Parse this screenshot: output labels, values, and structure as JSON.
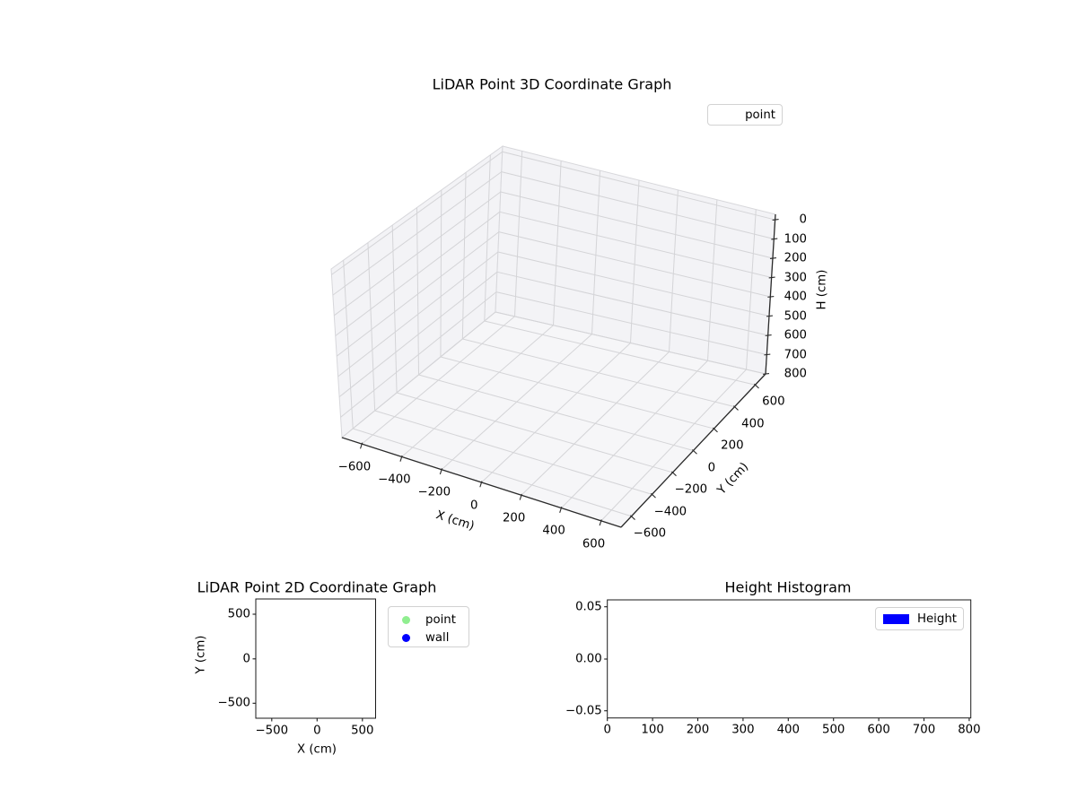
{
  "figure": {
    "background": "#ffffff"
  },
  "chart_data": [
    {
      "id": "lidar-3d",
      "type": "scatter3d",
      "title": "LiDAR Point 3D Coordinate Graph",
      "xlabel": "X (cm)",
      "ylabel": "Y (cm)",
      "zlabel": "H (cm)",
      "x_ticks": [
        "−600",
        "−400",
        "−200",
        "0",
        "200",
        "400",
        "600"
      ],
      "y_ticks": [
        "−600",
        "−400",
        "−200",
        "0",
        "200",
        "400",
        "600"
      ],
      "z_ticks": [
        "0",
        "100",
        "200",
        "300",
        "400",
        "500",
        "600",
        "700",
        "800"
      ],
      "xlim": [
        -700,
        700
      ],
      "ylim": [
        -700,
        700
      ],
      "zlim": [
        0,
        800
      ],
      "z_inverted": true,
      "grid": true,
      "legend": {
        "position": "upper right",
        "entries": [
          {
            "label": "point",
            "marker": "none"
          }
        ]
      },
      "series": [
        {
          "name": "point",
          "points": []
        }
      ]
    },
    {
      "id": "lidar-2d",
      "type": "scatter",
      "title": "LiDAR Point 2D Coordinate Graph",
      "xlabel": "X (cm)",
      "ylabel": "Y (cm)",
      "x_ticks": [
        "−500",
        "0",
        "500"
      ],
      "y_ticks": [
        "500",
        "0",
        "−500"
      ],
      "xlim": [
        -660,
        660
      ],
      "ylim": [
        -660,
        660
      ],
      "grid": false,
      "legend": {
        "position": "outside right",
        "entries": [
          {
            "label": "point",
            "color": "#90EE90"
          },
          {
            "label": "wall",
            "color": "#0000FF"
          }
        ]
      },
      "series": [
        {
          "name": "point",
          "color": "#90EE90",
          "points": []
        },
        {
          "name": "wall",
          "color": "#0000FF",
          "points": []
        }
      ]
    },
    {
      "id": "height-histogram",
      "type": "histogram",
      "title": "Height Histogram",
      "x_ticks": [
        "0",
        "100",
        "200",
        "300",
        "400",
        "500",
        "600",
        "700",
        "800"
      ],
      "y_ticks": [
        "0.05",
        "0.00",
        "−0.05"
      ],
      "xlim": [
        0,
        800
      ],
      "ylim": [
        -0.055,
        0.055
      ],
      "grid": false,
      "legend": {
        "position": "upper right",
        "entries": [
          {
            "label": "Height",
            "color": "#0000FF"
          }
        ]
      },
      "series": [
        {
          "name": "Height",
          "color": "#0000FF",
          "values": []
        }
      ]
    }
  ]
}
